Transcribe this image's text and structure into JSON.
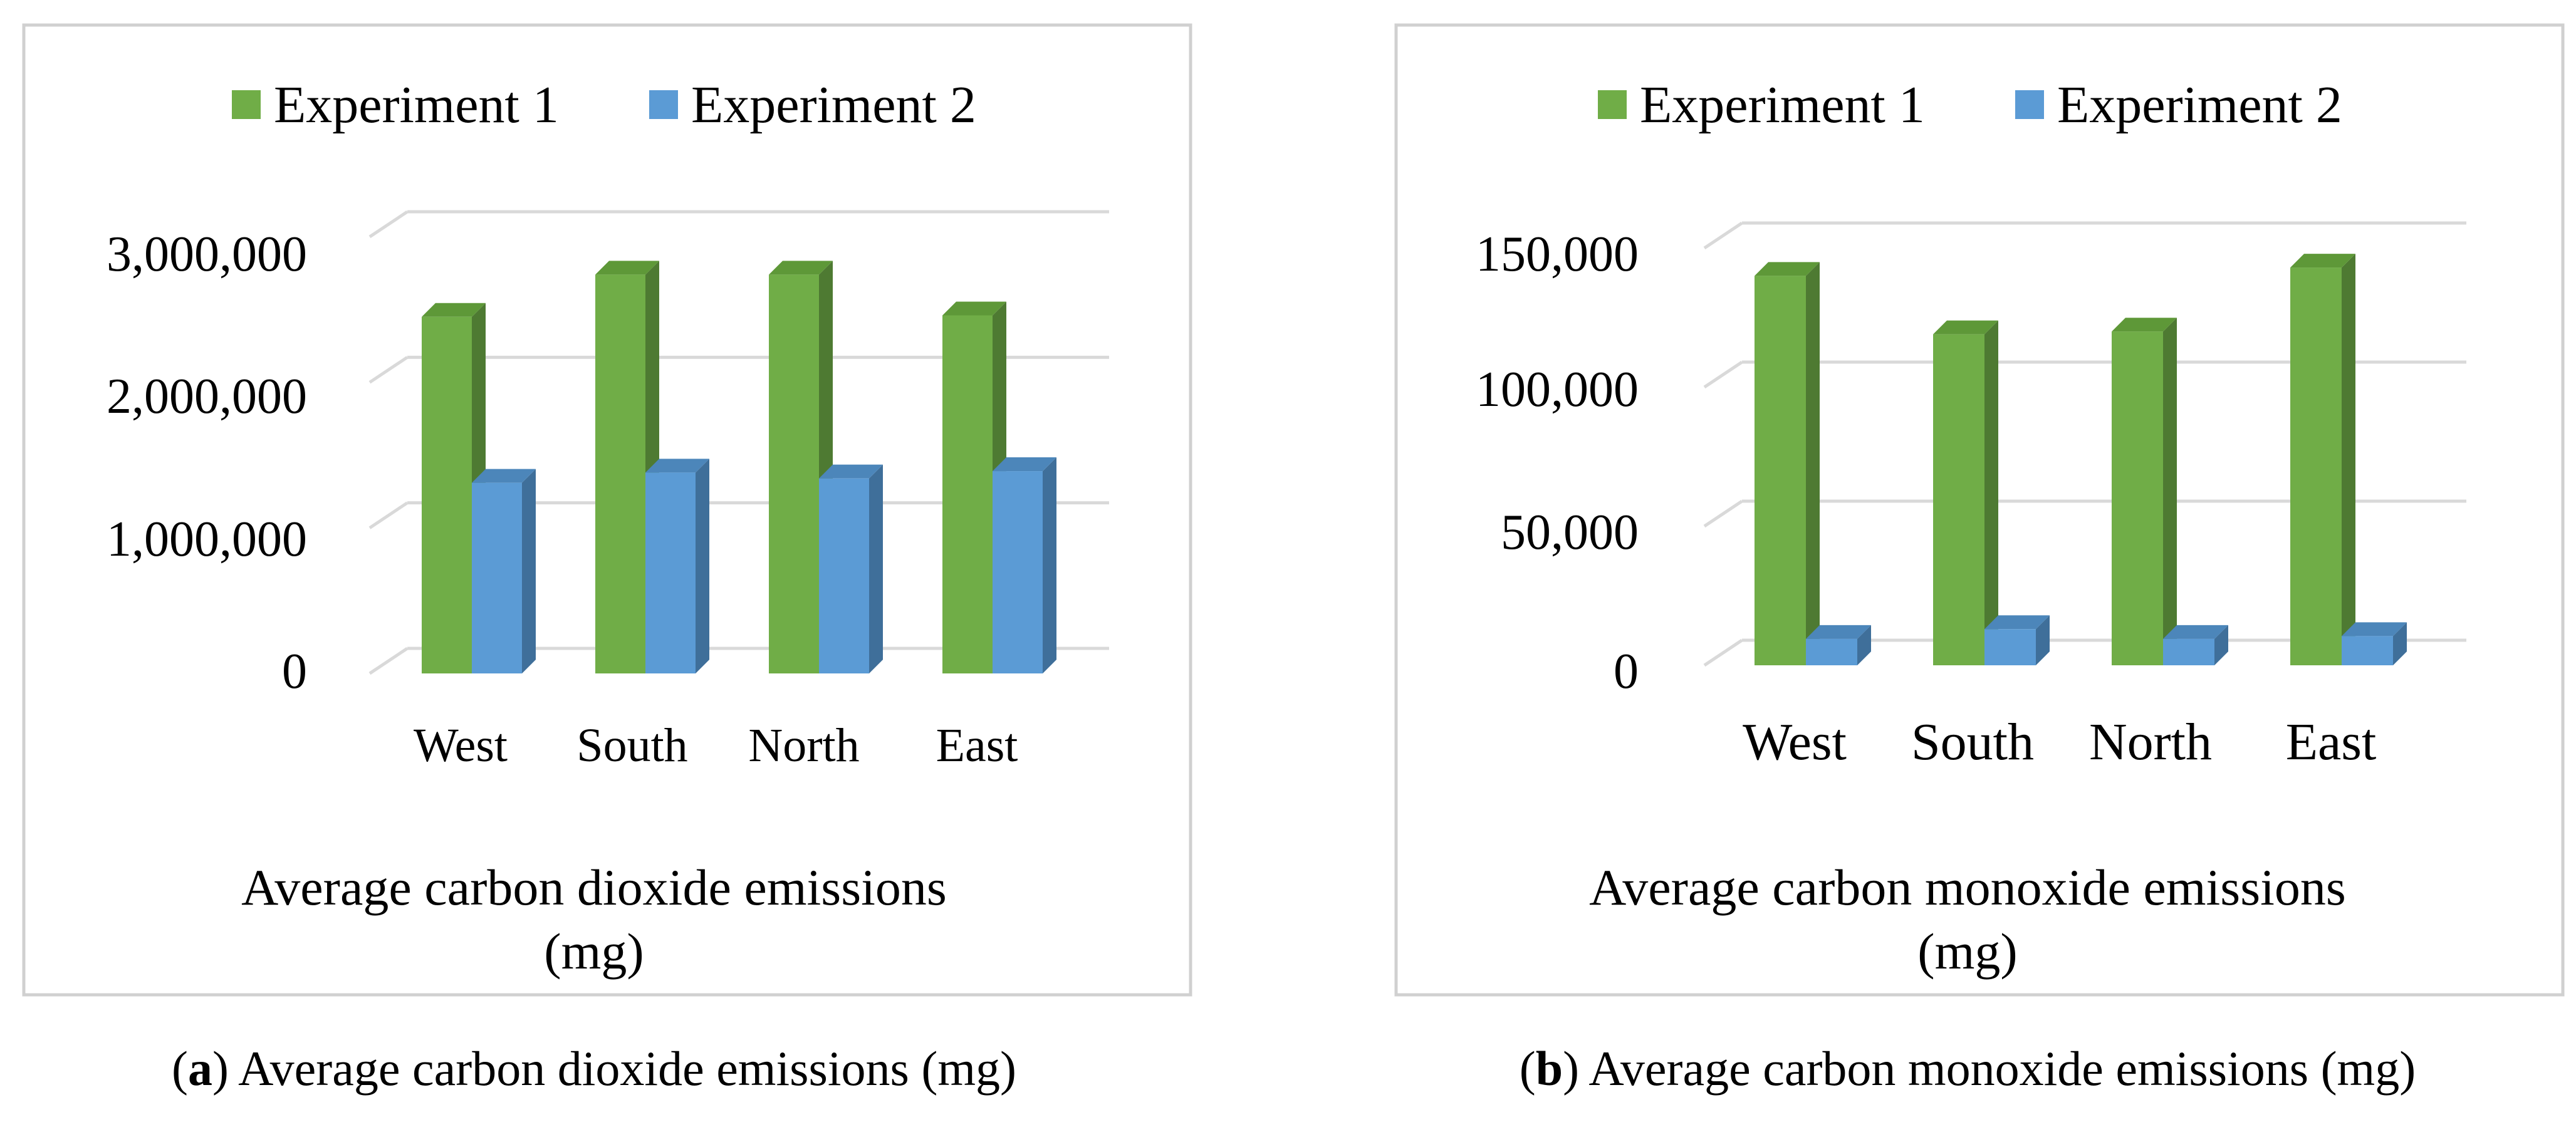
{
  "chart_data": [
    {
      "type": "bar",
      "title": "",
      "categories": [
        "West",
        "South",
        "North",
        "East"
      ],
      "series": [
        {
          "name": "Experiment 1",
          "values": [
            2450000,
            2740000,
            2740000,
            2460000
          ]
        },
        {
          "name": "Experiment 2",
          "values": [
            1310000,
            1380000,
            1340000,
            1390000
          ]
        }
      ],
      "xlabel_lines": [
        "Average carbon dioxide emissions",
        "(mg)"
      ],
      "ylabel": "",
      "ylim": [
        0,
        3000000
      ],
      "yticks": [
        0,
        1000000,
        2000000,
        3000000
      ],
      "ytick_labels": [
        "0",
        "1,000,000",
        "2,000,000",
        "3,000,000"
      ],
      "legend_position": "top",
      "grid": true,
      "caption": {
        "letter": "a",
        "text": ") Average carbon dioxide emissions (mg)",
        "open": "("
      }
    },
    {
      "type": "bar",
      "title": "",
      "categories": [
        "West",
        "South",
        "North",
        "East"
      ],
      "series": [
        {
          "name": "Experiment 1",
          "values": [
            140000,
            119000,
            120000,
            143000
          ]
        },
        {
          "name": "Experiment 2",
          "values": [
            9500,
            13000,
            9500,
            10500
          ]
        }
      ],
      "xlabel_lines": [
        "Average carbon monoxide emissions",
        "(mg)"
      ],
      "ylabel": "",
      "ylim": [
        0,
        150000
      ],
      "yticks": [
        0,
        50000,
        100000,
        150000
      ],
      "ytick_labels": [
        "0",
        "50,000",
        "100,000",
        "150,000"
      ],
      "legend_position": "top",
      "grid": true,
      "caption": {
        "letter": "b",
        "text": ") Average carbon monoxide emissions (mg)",
        "open": "("
      }
    }
  ],
  "colors": {
    "exp1_front": "#70AD47",
    "exp1_side": "#4E7A32",
    "exp1_top": "#5E9838",
    "exp2_front": "#5B9BD5",
    "exp2_side": "#3F6F9A",
    "exp2_top": "#4C86BA",
    "grid": "#D9D9D9",
    "frame": "#D0D0D0"
  }
}
